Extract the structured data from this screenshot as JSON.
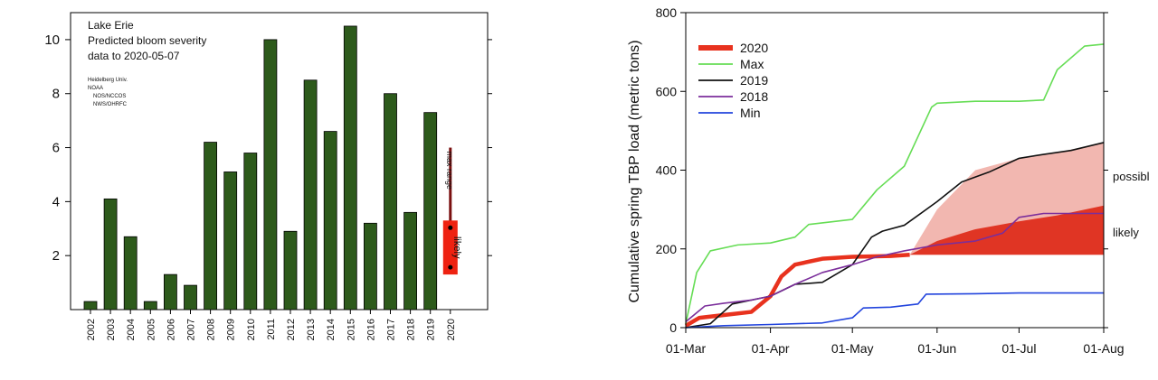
{
  "chart_data": [
    {
      "type": "bar",
      "title_lines": [
        "Lake Erie",
        "Predicted bloom severity",
        "data to 2020-05-07"
      ],
      "credits": [
        "Heidelberg Univ.",
        "NOAA",
        "NOS/NCCOS",
        "NWS/OHRFC"
      ],
      "categories": [
        "2002",
        "2003",
        "2004",
        "2005",
        "2006",
        "2007",
        "2008",
        "2009",
        "2010",
        "2011",
        "2012",
        "2013",
        "2014",
        "2015",
        "2016",
        "2017",
        "2018",
        "2019",
        "2020"
      ],
      "values": [
        0.3,
        4.1,
        2.7,
        0.3,
        1.3,
        0.9,
        6.2,
        5.1,
        5.8,
        10.0,
        2.9,
        8.5,
        6.6,
        10.5,
        3.2,
        8.0,
        3.6,
        7.3,
        null
      ],
      "yticks": [
        2,
        4,
        6,
        8,
        10
      ],
      "ylim": [
        0,
        11
      ],
      "bar_color": "#2d5a1b",
      "forecast_2020": {
        "max_range": [
          1.5,
          6.0
        ],
        "likely_range": [
          1.3,
          3.3
        ],
        "likely_label": "likely",
        "max_label": "max range",
        "likely_color": "#ee2211",
        "range_color": "#7a1010"
      }
    },
    {
      "type": "line",
      "ylabel": "Cumulative spring TBP load (metric tons)",
      "x_tick_labels": [
        "01-Mar",
        "01-Apr",
        "01-May",
        "01-Jun",
        "01-Jul",
        "01-Aug"
      ],
      "yticks": [
        0,
        200,
        400,
        600,
        800
      ],
      "ylim": [
        0,
        800
      ],
      "band_labels": {
        "possible": "possibl",
        "likely": "likely"
      },
      "series": [
        {
          "name": "2020",
          "color": "#e8321e",
          "x": [
            "2020-03-01",
            "2020-03-06",
            "2020-03-15",
            "2020-03-25",
            "2020-04-01",
            "2020-04-05",
            "2020-04-10",
            "2020-04-20",
            "2020-05-01",
            "2020-05-15",
            "2020-05-22"
          ],
          "y": [
            5,
            25,
            32,
            40,
            80,
            130,
            160,
            175,
            180,
            182,
            185
          ]
        },
        {
          "name": "Max",
          "color": "#66dd55",
          "x": [
            "2020-03-01",
            "2020-03-05",
            "2020-03-10",
            "2020-03-20",
            "2020-04-01",
            "2020-04-10",
            "2020-04-15",
            "2020-05-01",
            "2020-05-10",
            "2020-05-20",
            "2020-05-30",
            "2020-06-01",
            "2020-06-15",
            "2020-07-01",
            "2020-07-10",
            "2020-07-15",
            "2020-07-25",
            "2020-08-01"
          ],
          "y": [
            10,
            140,
            195,
            210,
            215,
            230,
            262,
            275,
            350,
            410,
            560,
            570,
            575,
            575,
            578,
            655,
            715,
            720
          ]
        },
        {
          "name": "2019",
          "color": "#111111",
          "x": [
            "2020-03-01",
            "2020-03-10",
            "2020-03-18",
            "2020-04-01",
            "2020-04-10",
            "2020-04-20",
            "2020-05-01",
            "2020-05-08",
            "2020-05-12",
            "2020-05-20",
            "2020-06-01",
            "2020-06-10",
            "2020-06-20",
            "2020-07-01",
            "2020-07-10",
            "2020-07-20",
            "2020-08-01"
          ],
          "y": [
            0,
            10,
            60,
            80,
            110,
            115,
            160,
            230,
            245,
            260,
            320,
            370,
            395,
            430,
            440,
            450,
            470
          ]
        },
        {
          "name": "2018",
          "color": "#7b2e9b",
          "x": [
            "2020-03-01",
            "2020-03-08",
            "2020-03-15",
            "2020-03-25",
            "2020-04-01",
            "2020-04-10",
            "2020-04-20",
            "2020-05-01",
            "2020-05-10",
            "2020-05-20",
            "2020-06-01",
            "2020-06-15",
            "2020-06-25",
            "2020-07-01",
            "2020-07-10",
            "2020-08-01"
          ],
          "y": [
            15,
            55,
            62,
            70,
            80,
            110,
            140,
            160,
            180,
            195,
            210,
            220,
            240,
            280,
            290,
            290
          ]
        },
        {
          "name": "Min",
          "color": "#2244dd",
          "x": [
            "2020-03-01",
            "2020-03-15",
            "2020-04-01",
            "2020-04-20",
            "2020-05-01",
            "2020-05-05",
            "2020-05-15",
            "2020-05-25",
            "2020-05-28",
            "2020-06-15",
            "2020-07-01",
            "2020-08-01"
          ],
          "y": [
            0,
            5,
            8,
            12,
            25,
            50,
            52,
            60,
            85,
            86,
            88,
            88
          ]
        }
      ],
      "possible_band": {
        "color": "#f2b7b0",
        "x": [
          "2020-05-22",
          "2020-06-01",
          "2020-06-15",
          "2020-07-01",
          "2020-07-15",
          "2020-08-01"
        ],
        "lower": [
          185,
          185,
          185,
          185,
          185,
          185
        ],
        "upper": [
          185,
          300,
          400,
          430,
          445,
          470
        ]
      },
      "likely_band": {
        "color": "#e03524",
        "x": [
          "2020-05-22",
          "2020-06-01",
          "2020-06-15",
          "2020-07-01",
          "2020-07-15",
          "2020-08-01"
        ],
        "lower": [
          185,
          185,
          185,
          185,
          185,
          185
        ],
        "upper": [
          185,
          220,
          250,
          270,
          285,
          310
        ]
      },
      "legend_position": "top-left"
    }
  ]
}
